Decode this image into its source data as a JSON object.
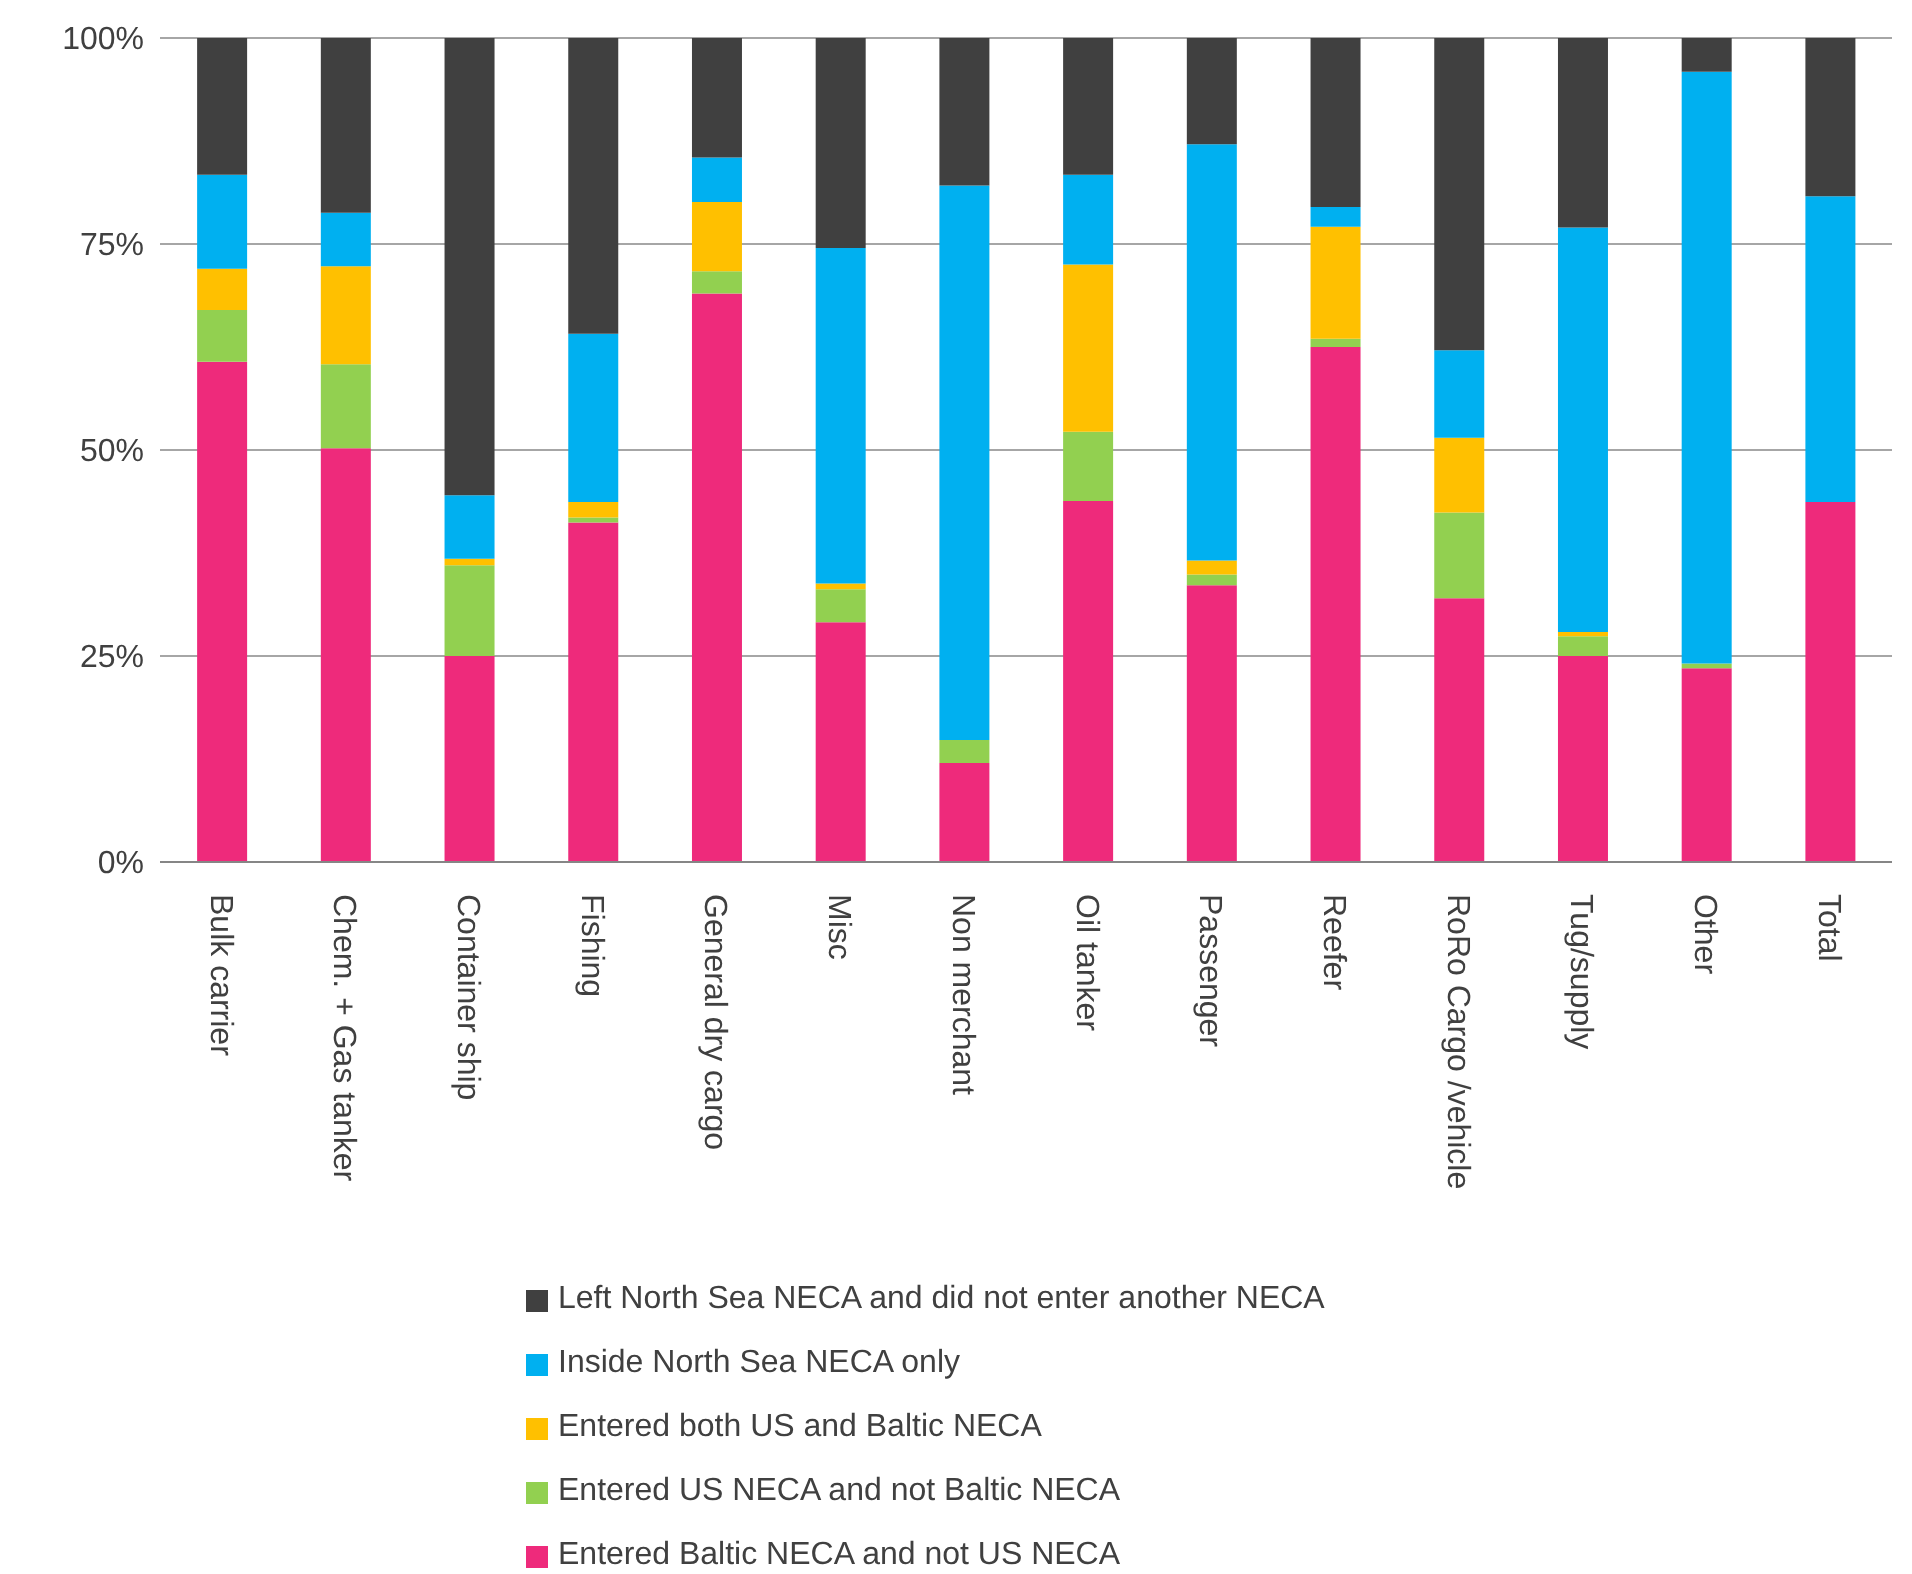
{
  "chart_data": {
    "type": "bar",
    "stacked": true,
    "categories": [
      "Bulk carrier",
      "Chem. + Gas tanker",
      "Container ship",
      "Fishing",
      "General dry cargo",
      "Misc",
      "Non merchant",
      "Oil tanker",
      "Passenger",
      "Reefer",
      "RoRo Cargo /vehicle",
      "Tug/supply",
      "Other",
      "Total"
    ],
    "series": [
      {
        "name": "Entered Baltic NECA and not US NECA",
        "color": "#ee2a7b",
        "values": [
          60.7,
          50.2,
          25,
          41.2,
          69,
          29.1,
          12,
          43.8,
          33.6,
          62.5,
          32,
          25,
          23.5,
          43.7
        ]
      },
      {
        "name": "Entered US NECA and not Baltic NECA",
        "color": "#92d050",
        "values": [
          6.3,
          10.2,
          11,
          0.6,
          2.7,
          4,
          2.8,
          8.4,
          1.3,
          1,
          10.4,
          2.4,
          0.6,
          0
        ]
      },
      {
        "name": "Entered both US and Baltic NECA",
        "color": "#ffc000",
        "values": [
          5,
          11.9,
          0.8,
          1.9,
          8.4,
          0.7,
          0,
          20.3,
          1.7,
          13.6,
          9.1,
          0.5,
          0,
          0
        ]
      },
      {
        "name": "Inside North Sea NECA only",
        "color": "#00b0f0",
        "values": [
          11.4,
          6.5,
          7.7,
          20.4,
          5.4,
          40.7,
          67.3,
          10.9,
          50.5,
          2.4,
          10.6,
          49.1,
          71.8,
          37.1
        ]
      },
      {
        "name": "Left North Sea NECA and did not enter another NECA",
        "color": "#404040",
        "values": [
          16.6,
          21.2,
          55.5,
          35.9,
          14.5,
          25.5,
          17.9,
          16.6,
          12.9,
          20.5,
          37.9,
          23,
          4.1,
          19.2
        ]
      }
    ],
    "ylim": [
      0,
      100
    ],
    "yticks": [
      {
        "value": 0,
        "label": "0%"
      },
      {
        "value": 25,
        "label": "25%"
      },
      {
        "value": 50,
        "label": "50%"
      },
      {
        "value": 75,
        "label": "75%"
      },
      {
        "value": 100,
        "label": "100%"
      }
    ],
    "grid": "y",
    "legend": "bottom"
  }
}
